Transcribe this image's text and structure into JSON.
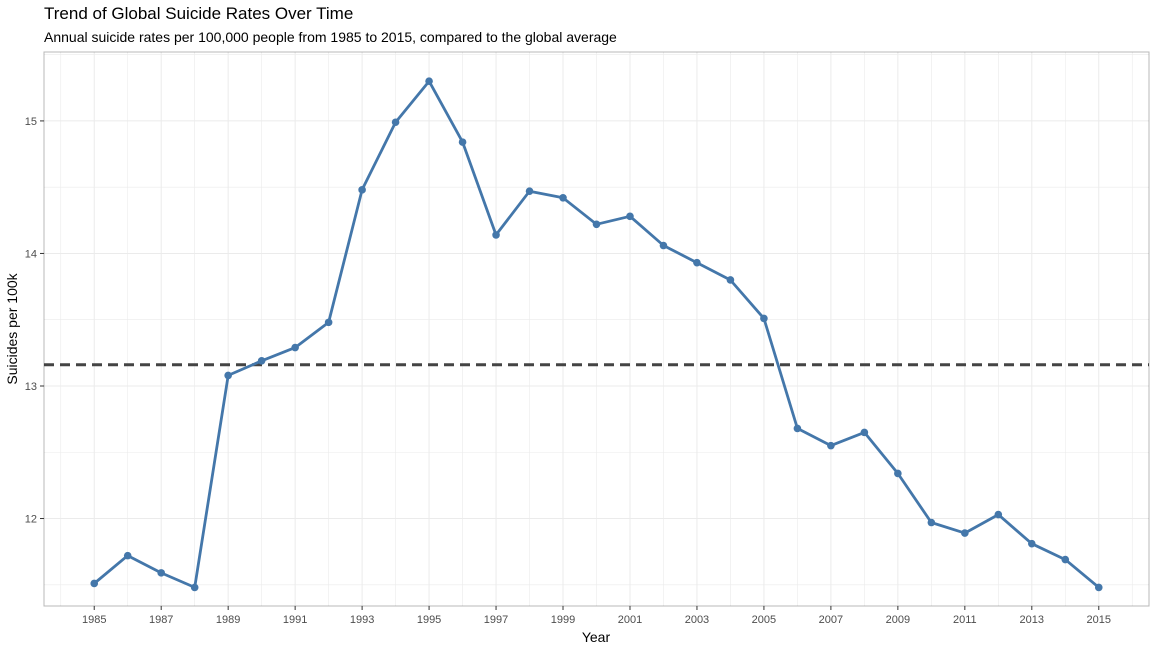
{
  "chart_data": {
    "type": "line",
    "title": "Trend of Global Suicide Rates Over Time",
    "subtitle": "Annual suicide rates per 100,000 people from 1985 to 2015, compared to the global average",
    "xlabel": "Year",
    "ylabel": "Suicides per 100k",
    "xlim": [
      1983.5,
      2016.5
    ],
    "ylim": [
      11.34,
      15.52
    ],
    "x_ticks": [
      1985,
      1987,
      1989,
      1991,
      1993,
      1995,
      1997,
      1999,
      2001,
      2003,
      2005,
      2007,
      2009,
      2011,
      2013,
      2015
    ],
    "y_ticks": [
      12,
      13,
      14,
      15
    ],
    "grid": true,
    "series": [
      {
        "color": "#4477aa",
        "x": [
          1985,
          1986,
          1987,
          1988,
          1989,
          1990,
          1991,
          1992,
          1993,
          1994,
          1995,
          1996,
          1997,
          1998,
          1999,
          2000,
          2001,
          2002,
          2003,
          2004,
          2005,
          2006,
          2007,
          2008,
          2009,
          2010,
          2011,
          2012,
          2013,
          2014,
          2015
        ],
        "values": [
          11.51,
          11.72,
          11.59,
          11.48,
          13.08,
          13.19,
          13.29,
          13.48,
          14.48,
          14.99,
          15.3,
          14.84,
          14.14,
          14.47,
          14.42,
          14.22,
          14.28,
          14.06,
          13.93,
          13.8,
          13.51,
          12.68,
          12.55,
          12.65,
          12.34,
          11.97,
          11.89,
          12.03,
          11.81,
          11.69,
          11.48
        ]
      }
    ],
    "reference_line": {
      "value": 13.16,
      "style": "dashed",
      "color": "#444444"
    }
  }
}
